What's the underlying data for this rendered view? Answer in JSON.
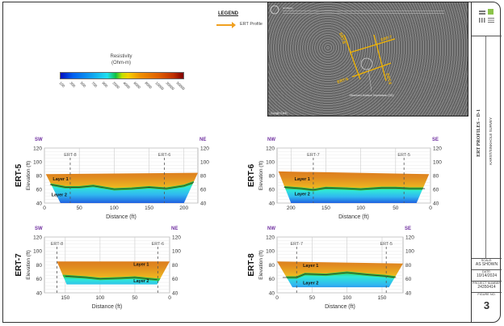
{
  "legend": {
    "title": "LEGEND",
    "items": [
      {
        "label": "ERT Profile",
        "color": "#f0a020"
      }
    ]
  },
  "colorbar": {
    "title": "Resistivity",
    "unit": "(Ohm-m)",
    "ticks": [
      "100",
      "300",
      "500",
      "700",
      "900",
      "2000",
      "4000",
      "6000",
      "8000",
      "10000",
      "30000",
      "50000"
    ]
  },
  "map": {
    "notes_label": "NOTE(S):",
    "profiles": [
      "ERT-5",
      "ERT-6",
      "ERT-7",
      "ERT-8"
    ],
    "feature_label": "Observed Surface Depression (SD)",
    "source": "Google Earth",
    "line_color": "#f2b400"
  },
  "title_block": {
    "title": "ERT PROFILES – D-1",
    "subtitle": "KARST/SINKHOLE SURVEY",
    "scale_label": "SCALE:",
    "scale": "AS SHOWN",
    "date_label": "DATE:",
    "date": "10/14/2024",
    "project_label": "PROJECT NUMBER",
    "project": "24350414",
    "figure_label": "FIGURE NO.",
    "figure": "3"
  },
  "sections": [
    {
      "name": "ERT-5",
      "left_dir": "SW",
      "right_dir": "NE",
      "xlabel": "Distance (ft)",
      "ylabel": "Elevation (ft)",
      "xlim": [
        0,
        220
      ],
      "ylim": [
        40,
        120
      ],
      "xticks": [
        0,
        50,
        100,
        150,
        200
      ],
      "yticks": [
        40,
        60,
        80,
        100,
        120
      ],
      "surface": [
        [
          2,
          82
        ],
        [
          220,
          84
        ]
      ],
      "bottom": [
        [
          23,
          40
        ],
        [
          200,
          40
        ]
      ],
      "layer_boundary": [
        [
          8,
          67
        ],
        [
          30,
          63
        ],
        [
          50,
          63
        ],
        [
          70,
          65
        ],
        [
          100,
          60
        ],
        [
          125,
          61
        ],
        [
          150,
          63
        ],
        [
          175,
          61
        ],
        [
          200,
          65
        ],
        [
          214,
          70
        ]
      ],
      "crossings": [
        {
          "label": "ERT-8",
          "x": 37
        },
        {
          "label": "ERT-6",
          "x": 172
        }
      ],
      "layers": [
        {
          "label": "Layer 1",
          "x": 12,
          "y": 73
        },
        {
          "label": "Layer 2",
          "x": 10,
          "y": 50
        }
      ]
    },
    {
      "name": "ERT-6",
      "left_dir": "NW",
      "right_dir": "SE",
      "xlabel": "Distance (ft)",
      "ylabel": "Elevation (ft)",
      "xlim": [
        220,
        0
      ],
      "ylim": [
        40,
        120
      ],
      "xticks": [
        200,
        150,
        100,
        50,
        0
      ],
      "yticks": [
        40,
        60,
        80,
        100,
        120
      ],
      "surface": [
        [
          218,
          86
        ],
        [
          2,
          82
        ]
      ],
      "bottom": [
        [
          200,
          40
        ],
        [
          20,
          40
        ]
      ],
      "layer_boundary": [
        [
          210,
          63
        ],
        [
          185,
          61
        ],
        [
          168,
          59
        ],
        [
          150,
          62
        ],
        [
          120,
          61
        ],
        [
          100,
          60
        ],
        [
          70,
          62
        ],
        [
          50,
          62
        ],
        [
          30,
          61
        ],
        [
          8,
          61
        ]
      ],
      "crossings": [
        {
          "label": "ERT-7",
          "x": 168
        },
        {
          "label": "ERT-5",
          "x": 38
        }
      ],
      "layers": [
        {
          "label": "Layer 1",
          "x": 195,
          "y": 73
        },
        {
          "label": "Layer 2",
          "x": 195,
          "y": 51
        }
      ]
    },
    {
      "name": "ERT-7",
      "left_dir": "SW",
      "right_dir": "NE",
      "xlabel": "Distance (ft)",
      "ylabel": "Elevation (ft)",
      "xlim": [
        180,
        0
      ],
      "ylim": [
        40,
        120
      ],
      "xticks": [
        150,
        100,
        50,
        0
      ],
      "yticks": [
        40,
        60,
        80,
        100,
        120
      ],
      "surface": [
        [
          162,
          85
        ],
        [
          0,
          85
        ]
      ],
      "bottom": [
        [
          148,
          52
        ],
        [
          18,
          52
        ]
      ],
      "layer_boundary": [
        [
          150,
          64
        ],
        [
          120,
          62
        ],
        [
          100,
          60
        ],
        [
          70,
          61
        ],
        [
          50,
          62
        ],
        [
          30,
          60
        ],
        [
          18,
          59
        ]
      ],
      "crossings": [
        {
          "label": "ERT-8",
          "x": 162
        },
        {
          "label": "ERT-6",
          "x": 17
        }
      ],
      "layers": [
        {
          "label": "Layer 1",
          "x": 52,
          "y": 79
        },
        {
          "label": "Layer 2",
          "x": 52,
          "y": 55
        }
      ]
    },
    {
      "name": "ERT-8",
      "left_dir": "NW",
      "right_dir": "SE",
      "xlabel": "Distance (ft)",
      "ylabel": "Elevation (ft)",
      "xlim": [
        0,
        180
      ],
      "ylim": [
        40,
        120
      ],
      "xticks": [
        0,
        50,
        100,
        150
      ],
      "yticks": [
        40,
        60,
        80,
        100,
        120
      ],
      "surface": [
        [
          0,
          85
        ],
        [
          180,
          82
        ]
      ],
      "bottom": [
        [
          22,
          48
        ],
        [
          160,
          48
        ]
      ],
      "layer_boundary": [
        [
          8,
          62
        ],
        [
          28,
          62
        ],
        [
          40,
          67
        ],
        [
          70,
          66
        ],
        [
          100,
          69
        ],
        [
          130,
          66
        ],
        [
          155,
          64
        ],
        [
          170,
          62
        ]
      ],
      "crossings": [
        {
          "label": "ERT-7",
          "x": 28
        },
        {
          "label": "ERT-5",
          "x": 156
        }
      ],
      "layers": [
        {
          "label": "Layer 1",
          "x": 37,
          "y": 77
        },
        {
          "label": "Layer 2",
          "x": 37,
          "y": 52
        }
      ]
    }
  ]
}
